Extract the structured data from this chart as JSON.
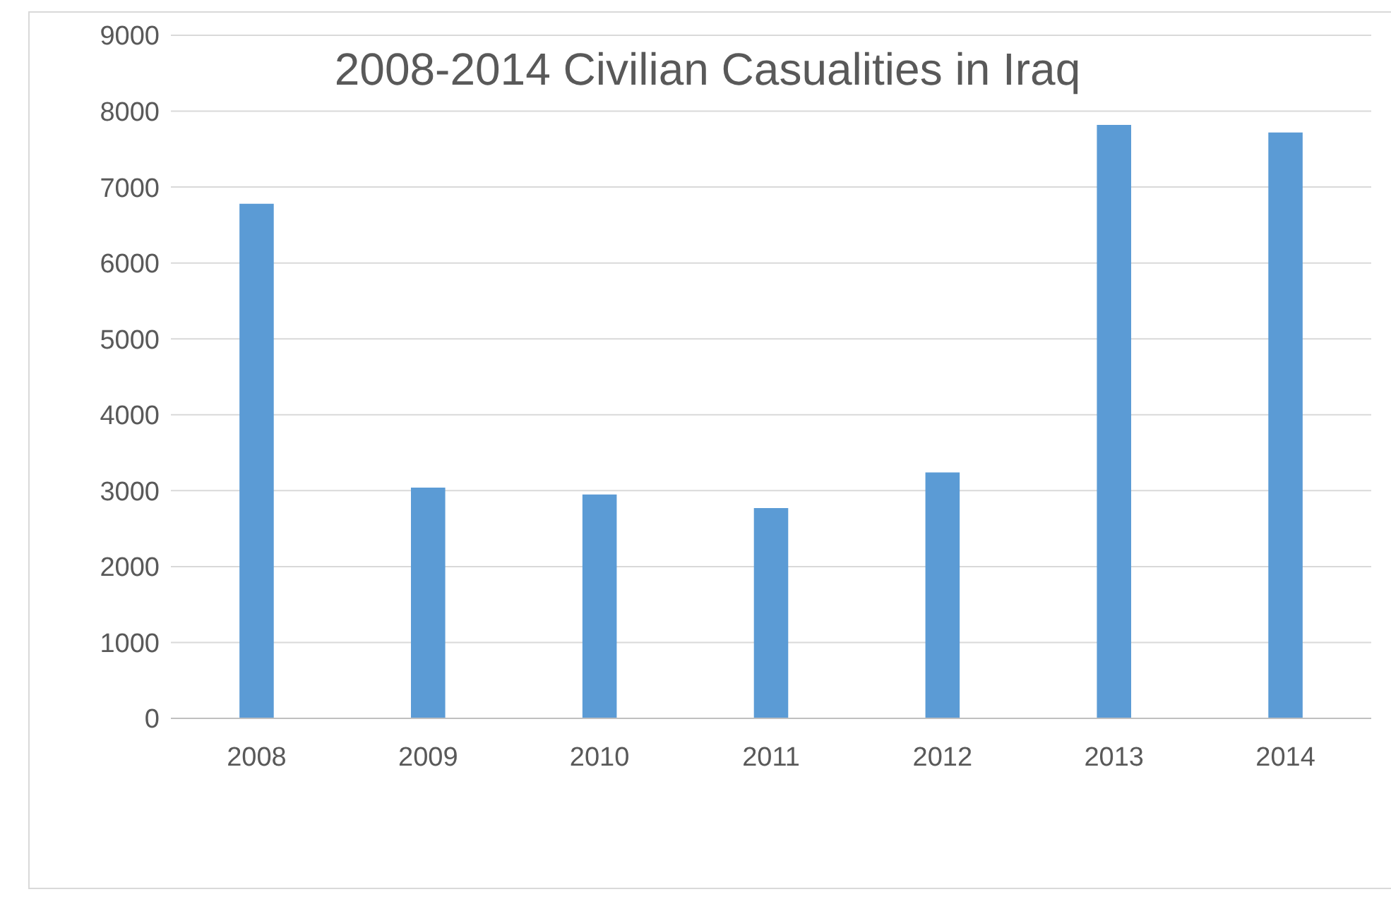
{
  "chart_data": {
    "type": "bar",
    "title": "2008-2014 Civilian Casualities in Iraq",
    "categories": [
      "2008",
      "2009",
      "2010",
      "2011",
      "2012",
      "2013",
      "2014"
    ],
    "values": [
      6780,
      3040,
      2950,
      2770,
      3240,
      7820,
      7720
    ],
    "color": "#5b9bd5",
    "ylim": [
      0,
      9000
    ],
    "yticks": [
      0,
      1000,
      2000,
      3000,
      4000,
      5000,
      6000,
      7000,
      8000,
      9000
    ],
    "grid": "y",
    "legend": false
  }
}
